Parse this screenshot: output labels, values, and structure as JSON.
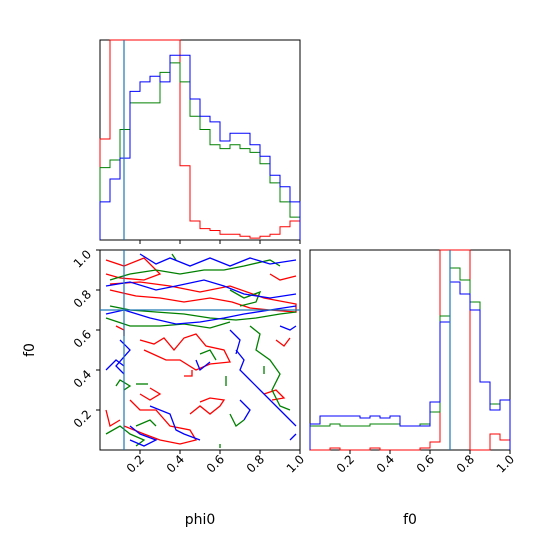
{
  "chart_data": {
    "type": "corner",
    "series_colors": {
      "red": "#ff0000",
      "green": "#008000",
      "blue": "#0000ff",
      "truth_line": "#1f77b4"
    },
    "axes": {
      "phi0": {
        "label": "phi0",
        "range": [
          0,
          1
        ],
        "ticks": [
          0.2,
          0.4,
          0.6,
          0.8,
          1.0
        ],
        "tick_labels": [
          "0.2",
          "0.4",
          "0.6",
          "0.8",
          "1.0"
        ]
      },
      "f0": {
        "label": "f0",
        "range": [
          0,
          1
        ],
        "ticks": [
          0.2,
          0.4,
          0.6,
          0.8,
          1.0
        ],
        "tick_labels": [
          "0.2",
          "0.4",
          "0.6",
          "0.8",
          "1.0"
        ]
      }
    },
    "truth": {
      "phi0": 0.12,
      "f0": 0.7
    },
    "hist_phi0": {
      "bin_edges": [
        0,
        0.05,
        0.1,
        0.15,
        0.2,
        0.25,
        0.3,
        0.35,
        0.4,
        0.45,
        0.5,
        0.55,
        0.6,
        0.65,
        0.7,
        0.75,
        0.8,
        0.85,
        0.9,
        0.95,
        1.0
      ],
      "ylim": [
        0,
        1.05
      ],
      "series": [
        {
          "color": "red",
          "values": [
            0.53,
            1.05,
            1.05,
            1.05,
            1.05,
            1.05,
            1.05,
            1.05,
            0.39,
            0.1,
            0.06,
            0.05,
            0.03,
            0.03,
            0.02,
            0.01,
            0.02,
            0.03,
            0.07,
            0.1
          ]
        },
        {
          "color": "green",
          "values": [
            0.38,
            0.42,
            0.58,
            0.72,
            0.72,
            0.72,
            0.88,
            0.93,
            0.83,
            0.65,
            0.58,
            0.5,
            0.48,
            0.5,
            0.48,
            0.46,
            0.4,
            0.3,
            0.2,
            0.12
          ]
        },
        {
          "color": "blue",
          "values": [
            0.2,
            0.32,
            0.43,
            0.78,
            0.83,
            0.86,
            0.83,
            0.97,
            0.97,
            0.74,
            0.65,
            0.62,
            0.52,
            0.56,
            0.56,
            0.5,
            0.44,
            0.34,
            0.28,
            0.2
          ]
        }
      ]
    },
    "hist_f0": {
      "bin_edges": [
        0,
        0.05,
        0.1,
        0.15,
        0.2,
        0.25,
        0.3,
        0.35,
        0.4,
        0.45,
        0.5,
        0.55,
        0.6,
        0.65,
        0.7,
        0.75,
        0.8,
        0.85,
        0.9,
        0.95,
        1.0
      ],
      "ylim": [
        0,
        1.0
      ],
      "series": [
        {
          "color": "red",
          "values": [
            0.0,
            0.0,
            0.01,
            0.0,
            0.0,
            0.0,
            0.01,
            0.0,
            0.0,
            0.0,
            0.0,
            0.01,
            0.04,
            1.0,
            1.0,
            1.0,
            0.0,
            0.0,
            0.08,
            0.05
          ]
        },
        {
          "color": "green",
          "values": [
            0.12,
            0.12,
            0.13,
            0.12,
            0.12,
            0.12,
            0.13,
            0.13,
            0.13,
            0.12,
            0.12,
            0.13,
            0.19,
            0.67,
            0.91,
            0.85,
            0.74,
            0.34,
            0.23,
            0.25
          ]
        },
        {
          "color": "blue",
          "values": [
            0.13,
            0.17,
            0.17,
            0.17,
            0.17,
            0.16,
            0.17,
            0.16,
            0.17,
            0.12,
            0.12,
            0.12,
            0.24,
            0.64,
            0.84,
            0.78,
            0.7,
            0.34,
            0.2,
            0.25
          ]
        }
      ]
    },
    "contours_2d": [
      {
        "color": "red",
        "paths": [
          [
            [
              0.03,
              0.95
            ],
            [
              0.12,
              0.92
            ],
            [
              0.22,
              0.96
            ],
            [
              0.3,
              0.88
            ],
            [
              0.22,
              0.85
            ],
            [
              0.1,
              0.86
            ],
            [
              0.03,
              0.88
            ]
          ],
          [
            [
              0.05,
              0.8
            ],
            [
              0.18,
              0.77
            ],
            [
              0.3,
              0.76
            ],
            [
              0.42,
              0.74
            ],
            [
              0.55,
              0.76
            ],
            [
              0.66,
              0.74
            ],
            [
              0.75,
              0.71
            ],
            [
              0.85,
              0.7
            ],
            [
              0.98,
              0.69
            ],
            [
              0.98,
              0.73
            ],
            [
              0.82,
              0.76
            ],
            [
              0.65,
              0.82
            ],
            [
              0.5,
              0.79
            ],
            [
              0.35,
              0.82
            ],
            [
              0.2,
              0.84
            ],
            [
              0.05,
              0.83
            ]
          ],
          [
            [
              0.2,
              0.55
            ],
            [
              0.27,
              0.53
            ],
            [
              0.32,
              0.56
            ],
            [
              0.37,
              0.5
            ],
            [
              0.42,
              0.56
            ],
            [
              0.48,
              0.58
            ],
            [
              0.53,
              0.52
            ],
            [
              0.62,
              0.5
            ],
            [
              0.65,
              0.44
            ],
            [
              0.55,
              0.43
            ],
            [
              0.48,
              0.4
            ],
            [
              0.4,
              0.45
            ],
            [
              0.33,
              0.45
            ],
            [
              0.22,
              0.5
            ]
          ],
          [
            [
              0.08,
              0.62
            ],
            [
              0.12,
              0.6
            ],
            [
              0.12,
              0.57
            ]
          ],
          [
            [
              0.15,
              0.25
            ],
            [
              0.2,
              0.2
            ],
            [
              0.28,
              0.2
            ],
            [
              0.35,
              0.12
            ],
            [
              0.45,
              0.1
            ],
            [
              0.48,
              0.05
            ],
            [
              0.4,
              0.03
            ],
            [
              0.3,
              0.05
            ],
            [
              0.22,
              0.08
            ],
            [
              0.12,
              0.12
            ]
          ],
          [
            [
              0.2,
              0.28
            ],
            [
              0.25,
              0.25
            ],
            [
              0.3,
              0.28
            ],
            [
              0.25,
              0.31
            ]
          ],
          [
            [
              0.45,
              0.18
            ],
            [
              0.5,
              0.22
            ],
            [
              0.55,
              0.18
            ],
            [
              0.6,
              0.22
            ],
            [
              0.62,
              0.25
            ],
            [
              0.55,
              0.26
            ],
            [
              0.5,
              0.24
            ]
          ],
          [
            [
              0.82,
              0.28
            ],
            [
              0.88,
              0.3
            ],
            [
              0.92,
              0.26
            ],
            [
              0.86,
              0.25
            ]
          ],
          [
            [
              0.42,
              0.37
            ],
            [
              0.46,
              0.37
            ],
            [
              0.46,
              0.4
            ]
          ],
          [
            [
              0.85,
              0.88
            ],
            [
              0.9,
              0.85
            ],
            [
              0.98,
              0.87
            ]
          ],
          [
            [
              0.88,
              0.55
            ],
            [
              0.92,
              0.52
            ],
            [
              0.95,
              0.56
            ]
          ],
          [
            [
              0.03,
              0.2
            ],
            [
              0.05,
              0.12
            ],
            [
              0.1,
              0.15
            ]
          ]
        ]
      },
      {
        "color": "green",
        "paths": [
          [
            [
              0.05,
              0.72
            ],
            [
              0.15,
              0.7
            ],
            [
              0.28,
              0.69
            ],
            [
              0.42,
              0.68
            ],
            [
              0.55,
              0.66
            ],
            [
              0.68,
              0.65
            ],
            [
              0.78,
              0.66
            ],
            [
              0.9,
              0.68
            ],
            [
              0.98,
              0.69
            ]
          ],
          [
            [
              0.03,
              0.66
            ],
            [
              0.15,
              0.62
            ],
            [
              0.3,
              0.62
            ],
            [
              0.42,
              0.63
            ],
            [
              0.55,
              0.61
            ],
            [
              0.65,
              0.64
            ]
          ],
          [
            [
              0.05,
              0.85
            ],
            [
              0.15,
              0.88
            ],
            [
              0.28,
              0.9
            ],
            [
              0.4,
              0.88
            ],
            [
              0.52,
              0.9
            ],
            [
              0.62,
              0.9
            ],
            [
              0.72,
              0.92
            ],
            [
              0.85,
              0.95
            ],
            [
              0.9,
              0.92
            ]
          ],
          [
            [
              0.65,
              0.8
            ],
            [
              0.72,
              0.76
            ],
            [
              0.8,
              0.79
            ],
            [
              0.78,
              0.74
            ],
            [
              0.7,
              0.72
            ]
          ],
          [
            [
              0.75,
              0.62
            ],
            [
              0.8,
              0.58
            ],
            [
              0.78,
              0.5
            ],
            [
              0.85,
              0.45
            ],
            [
              0.9,
              0.38
            ],
            [
              0.86,
              0.3
            ],
            [
              0.9,
              0.22
            ],
            [
              0.95,
              0.2
            ]
          ],
          [
            [
              0.03,
              0.08
            ],
            [
              0.1,
              0.12
            ],
            [
              0.15,
              0.08
            ],
            [
              0.22,
              0.05
            ],
            [
              0.18,
              0.02
            ]
          ],
          [
            [
              0.18,
              0.12
            ],
            [
              0.25,
              0.15
            ],
            [
              0.28,
              0.12
            ]
          ],
          [
            [
              0.08,
              0.32
            ],
            [
              0.1,
              0.35
            ],
            [
              0.15,
              0.32
            ],
            [
              0.12,
              0.3
            ]
          ],
          [
            [
              0.18,
              0.33
            ],
            [
              0.24,
              0.33
            ]
          ],
          [
            [
              0.5,
              0.48
            ],
            [
              0.55,
              0.5
            ],
            [
              0.58,
              0.45
            ]
          ],
          [
            [
              0.65,
              0.18
            ],
            [
              0.68,
              0.12
            ],
            [
              0.72,
              0.15
            ]
          ],
          [
            [
              0.36,
              0.98
            ],
            [
              0.38,
              0.95
            ]
          ],
          [
            [
              0.63,
              0.37
            ],
            [
              0.63,
              0.32
            ]
          ],
          [
            [
              0.82,
              0.42
            ],
            [
              0.82,
              0.38
            ]
          ],
          [
            [
              0.6,
              0.03
            ],
            [
              0.6,
              0.01
            ]
          ]
        ]
      },
      {
        "color": "blue",
        "paths": [
          [
            [
              0.03,
              0.82
            ],
            [
              0.15,
              0.84
            ],
            [
              0.28,
              0.8
            ],
            [
              0.38,
              0.82
            ],
            [
              0.52,
              0.85
            ],
            [
              0.62,
              0.82
            ],
            [
              0.72,
              0.78
            ],
            [
              0.85,
              0.76
            ],
            [
              0.98,
              0.78
            ]
          ],
          [
            [
              0.03,
              0.68
            ],
            [
              0.12,
              0.7
            ],
            [
              0.25,
              0.66
            ],
            [
              0.38,
              0.63
            ],
            [
              0.5,
              0.64
            ],
            [
              0.62,
              0.66
            ],
            [
              0.72,
              0.68
            ],
            [
              0.85,
              0.7
            ],
            [
              0.98,
              0.72
            ]
          ],
          [
            [
              0.2,
              0.98
            ],
            [
              0.28,
              0.93
            ],
            [
              0.35,
              0.96
            ],
            [
              0.45,
              0.92
            ],
            [
              0.55,
              0.96
            ],
            [
              0.65,
              0.92
            ],
            [
              0.75,
              0.96
            ],
            [
              0.85,
              0.93
            ],
            [
              0.98,
              0.95
            ]
          ],
          [
            [
              0.1,
              0.55
            ],
            [
              0.15,
              0.5
            ],
            [
              0.08,
              0.42
            ],
            [
              0.12,
              0.38
            ]
          ],
          [
            [
              0.15,
              0.12
            ],
            [
              0.2,
              0.08
            ],
            [
              0.28,
              0.05
            ],
            [
              0.22,
              0.02
            ],
            [
              0.15,
              0.05
            ]
          ],
          [
            [
              0.25,
              0.22
            ],
            [
              0.35,
              0.18
            ],
            [
              0.38,
              0.1
            ],
            [
              0.42,
              0.08
            ],
            [
              0.5,
              0.05
            ]
          ],
          [
            [
              0.03,
              0.4
            ],
            [
              0.08,
              0.45
            ],
            [
              0.12,
              0.42
            ]
          ],
          [
            [
              0.48,
              0.45
            ],
            [
              0.5,
              0.4
            ],
            [
              0.55,
              0.44
            ]
          ],
          [
            [
              0.68,
              0.5
            ],
            [
              0.72,
              0.45
            ],
            [
              0.7,
              0.4
            ],
            [
              0.75,
              0.35
            ],
            [
              0.8,
              0.3
            ],
            [
              0.85,
              0.25
            ],
            [
              0.9,
              0.2
            ],
            [
              0.95,
              0.15
            ],
            [
              0.98,
              0.12
            ]
          ],
          [
            [
              0.65,
              0.6
            ],
            [
              0.7,
              0.55
            ],
            [
              0.68,
              0.48
            ]
          ],
          [
            [
              0.9,
              0.62
            ],
            [
              0.95,
              0.6
            ],
            [
              0.98,
              0.62
            ]
          ],
          [
            [
              0.7,
              0.25
            ],
            [
              0.75,
              0.2
            ],
            [
              0.72,
              0.15
            ]
          ],
          [
            [
              0.95,
              0.05
            ],
            [
              0.98,
              0.08
            ]
          ]
        ]
      }
    ]
  }
}
